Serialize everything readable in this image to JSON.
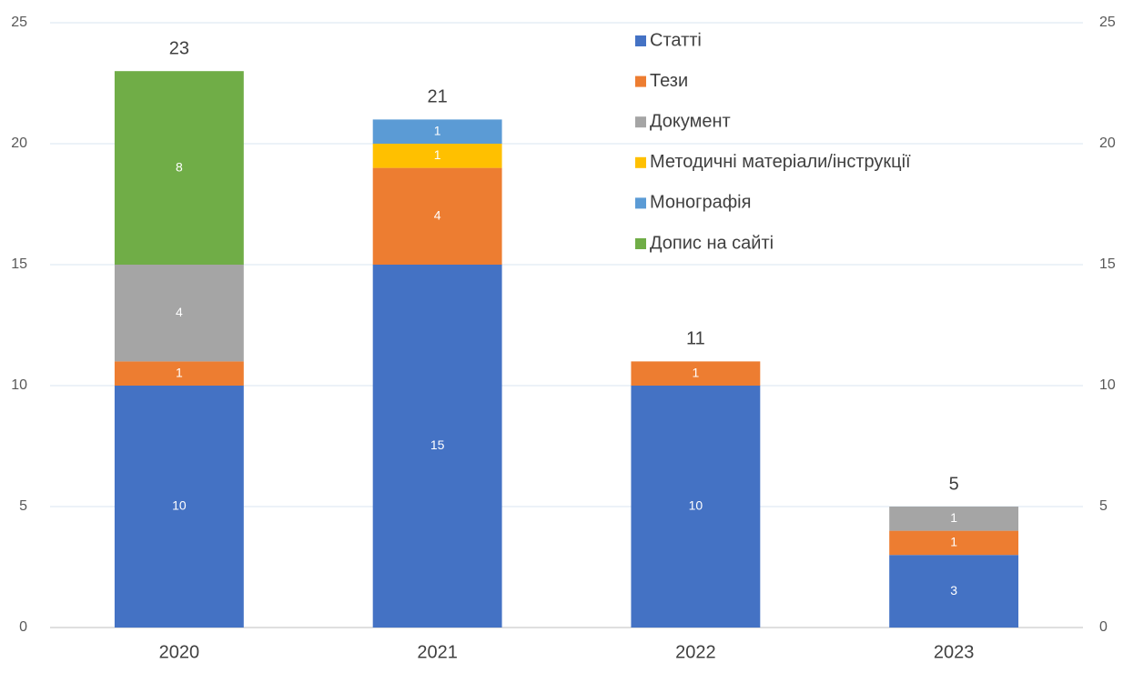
{
  "chart_data": {
    "type": "stacked_bar",
    "categories": [
      "2020",
      "2021",
      "2022",
      "2023"
    ],
    "series": [
      {
        "name": "Статті",
        "color": "#4472c4",
        "values": [
          10,
          15,
          10,
          3
        ]
      },
      {
        "name": "Тези",
        "color": "#ed7d31",
        "values": [
          1,
          4,
          1,
          1
        ]
      },
      {
        "name": "Документ",
        "color": "#a5a5a5",
        "values": [
          4,
          null,
          null,
          1
        ]
      },
      {
        "name": "Методичні матеріали/інструкції",
        "color": "#ffc000",
        "values": [
          null,
          1,
          null,
          null
        ]
      },
      {
        "name": "Монографія",
        "color": "#5b9bd5",
        "values": [
          null,
          1,
          null,
          null
        ]
      },
      {
        "name": "Допис на сайті",
        "color": "#70ad47",
        "values": [
          8,
          null,
          null,
          null
        ]
      }
    ],
    "totals": [
      23,
      21,
      11,
      5
    ],
    "ylim": [
      0,
      25
    ],
    "yticks": [
      0,
      5,
      10,
      15,
      20,
      25
    ],
    "y2lim": [
      0,
      25
    ],
    "y2ticks": [
      0,
      5,
      10,
      15,
      20,
      25
    ],
    "grid": true,
    "legend": "upper-right"
  }
}
